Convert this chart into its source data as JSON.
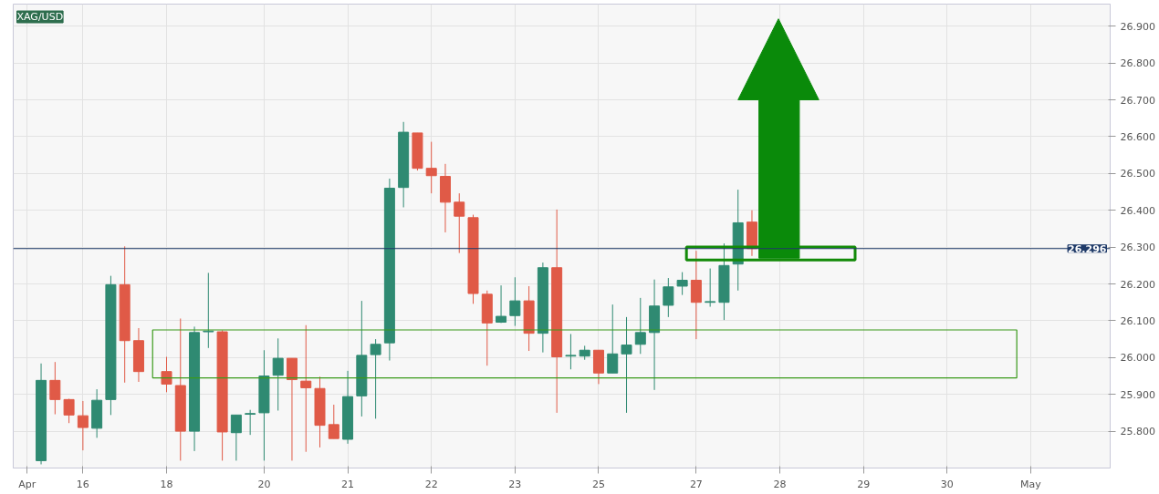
{
  "chart_data": {
    "type": "candlestick",
    "title": "XAG/USD",
    "categories": [
      "Apr",
      null,
      null,
      null,
      "16",
      null,
      null,
      null,
      null,
      null,
      "18",
      null,
      null,
      null,
      null,
      null,
      null,
      "20",
      null,
      null,
      null,
      null,
      null,
      "21",
      null,
      null,
      null,
      null,
      null,
      "22",
      null,
      null,
      null,
      null,
      null,
      "23",
      null,
      null,
      null,
      null,
      null,
      "25",
      null,
      null,
      null,
      null,
      null,
      null,
      "27",
      null,
      null,
      null,
      null,
      null,
      "28",
      null,
      null,
      null,
      null,
      null,
      "29",
      null,
      null,
      null,
      null,
      null,
      "30",
      null,
      null,
      null,
      null,
      null,
      "May",
      null,
      null,
      null,
      null,
      null
    ],
    "ohlc": [
      null,
      [
        25.72,
        25.984,
        25.71,
        25.938
      ],
      [
        25.938,
        25.988,
        25.846,
        25.886
      ],
      [
        25.886,
        25.888,
        25.822,
        25.844
      ],
      [
        25.842,
        25.882,
        25.748,
        25.81
      ],
      [
        25.808,
        25.914,
        25.782,
        25.884
      ],
      [
        25.886,
        26.222,
        25.844,
        26.198
      ],
      [
        26.198,
        26.302,
        25.932,
        26.046
      ],
      [
        26.046,
        26.08,
        25.934,
        25.962
      ],
      null,
      [
        25.962,
        26.002,
        25.906,
        25.928
      ],
      [
        25.924,
        26.106,
        25.72,
        25.8
      ],
      [
        25.8,
        26.084,
        25.746,
        26.068
      ],
      [
        26.07,
        26.23,
        26.026,
        26.072
      ],
      [
        26.07,
        26.074,
        25.72,
        25.798
      ],
      [
        25.796,
        25.844,
        25.72,
        25.844
      ],
      [
        25.846,
        25.858,
        25.79,
        25.848
      ],
      [
        25.85,
        26.02,
        25.72,
        25.95
      ],
      [
        25.952,
        26.052,
        25.856,
        25.998
      ],
      [
        25.998,
        25.998,
        25.72,
        25.94
      ],
      [
        25.936,
        26.088,
        25.744,
        25.918
      ],
      [
        25.916,
        25.948,
        25.756,
        25.816
      ],
      [
        25.818,
        25.872,
        25.78,
        25.78
      ],
      [
        25.778,
        25.964,
        25.766,
        25.894
      ],
      [
        25.896,
        26.154,
        25.84,
        26.006
      ],
      [
        26.008,
        26.05,
        25.834,
        26.036
      ],
      [
        26.04,
        26.486,
        25.992,
        26.46
      ],
      [
        26.462,
        26.64,
        26.408,
        26.612
      ],
      [
        26.61,
        26.61,
        26.508,
        26.514
      ],
      [
        26.514,
        26.586,
        26.446,
        26.494
      ],
      [
        26.492,
        26.526,
        26.34,
        26.422
      ],
      [
        26.422,
        26.446,
        26.284,
        26.384
      ],
      [
        26.38,
        26.388,
        26.146,
        26.174
      ],
      [
        26.172,
        26.182,
        25.978,
        26.094
      ],
      [
        26.096,
        26.196,
        26.094,
        26.112
      ],
      [
        26.114,
        26.218,
        26.086,
        26.154
      ],
      [
        26.154,
        26.194,
        26.018,
        26.066
      ],
      [
        26.066,
        26.258,
        26.014,
        26.244
      ],
      [
        26.244,
        26.402,
        25.85,
        26.002
      ],
      [
        26.004,
        26.064,
        25.968,
        26.006
      ],
      [
        26.004,
        26.032,
        25.994,
        26.02
      ],
      [
        26.02,
        26.02,
        25.928,
        25.958
      ],
      [
        25.958,
        26.144,
        25.958,
        26.01
      ],
      [
        26.01,
        26.11,
        25.85,
        26.034
      ],
      [
        26.036,
        26.162,
        26.01,
        26.068
      ],
      [
        26.068,
        26.212,
        25.912,
        26.14
      ],
      [
        26.142,
        26.216,
        26.11,
        26.192
      ],
      [
        26.194,
        26.232,
        26.17,
        26.21
      ],
      [
        26.21,
        26.29,
        26.05,
        26.15
      ],
      [
        26.15,
        26.242,
        26.138,
        26.152
      ],
      [
        26.15,
        26.31,
        26.102,
        26.25
      ],
      [
        26.254,
        26.456,
        26.182,
        26.366
      ],
      [
        26.368,
        26.4,
        26.276,
        26.296
      ],
      null,
      null,
      null,
      null,
      null,
      null,
      null,
      null,
      null,
      null,
      null,
      null,
      null,
      null,
      null,
      null,
      null,
      null,
      null,
      null,
      null,
      null,
      null,
      null,
      null
    ],
    "colors": [
      null,
      "#2f8a72",
      "#e05a47",
      "#e05a47",
      "#e05a47",
      "#2f8a72",
      "#2f8a72",
      "#e05a47",
      "#e05a47",
      null,
      "#e05a47",
      "#e05a47",
      "#2f8a72",
      "#2f8a72",
      "#e05a47",
      "#2f8a72",
      "#2f8a72",
      "#2f8a72",
      "#2f8a72",
      "#e05a47",
      "#e05a47",
      "#e05a47",
      "#e05a47",
      "#2f8a72",
      "#2f8a72",
      "#2f8a72",
      "#2f8a72",
      "#2f8a72",
      "#e05a47",
      "#e05a47",
      "#e05a47",
      "#e05a47",
      "#e05a47",
      "#e05a47",
      "#2f8a72",
      "#2f8a72",
      "#e05a47",
      "#2f8a72",
      "#e05a47",
      "#2f8a72",
      "#2f8a72",
      "#e05a47",
      "#2f8a72",
      "#2f8a72",
      "#2f8a72",
      "#2f8a72",
      "#2f8a72",
      "#2f8a72",
      "#e05a47",
      "#2f8a72",
      "#2f8a72",
      "#2f8a72",
      "#e05a47",
      null,
      null,
      null,
      null,
      null,
      null,
      null,
      null,
      null,
      null,
      null,
      null,
      null,
      null,
      null,
      null,
      null,
      null,
      null,
      null,
      null,
      null,
      null,
      null,
      null
    ],
    "ylim": [
      25.7,
      26.96
    ],
    "yticks": [
      {
        "value": 25.8,
        "label": "25.800"
      },
      {
        "value": 25.9,
        "label": "25.900"
      },
      {
        "value": 26.0,
        "label": "26.000"
      },
      {
        "value": 26.1,
        "label": "26.100"
      },
      {
        "value": 26.2,
        "label": "26.200"
      },
      {
        "value": 26.3,
        "label": "26.300"
      },
      {
        "value": 26.4,
        "label": "26.400"
      },
      {
        "value": 26.5,
        "label": "26.500"
      },
      {
        "value": 26.6,
        "label": "26.600"
      },
      {
        "value": 26.7,
        "label": "26.700"
      },
      {
        "value": 26.8,
        "label": "26.800"
      },
      {
        "value": 26.9,
        "label": "26.900"
      }
    ],
    "ref_lines": [
      {
        "axis": "y",
        "value": 26.296,
        "label": "26.296",
        "color": "#1f3a68"
      }
    ],
    "grid": true
  }
}
